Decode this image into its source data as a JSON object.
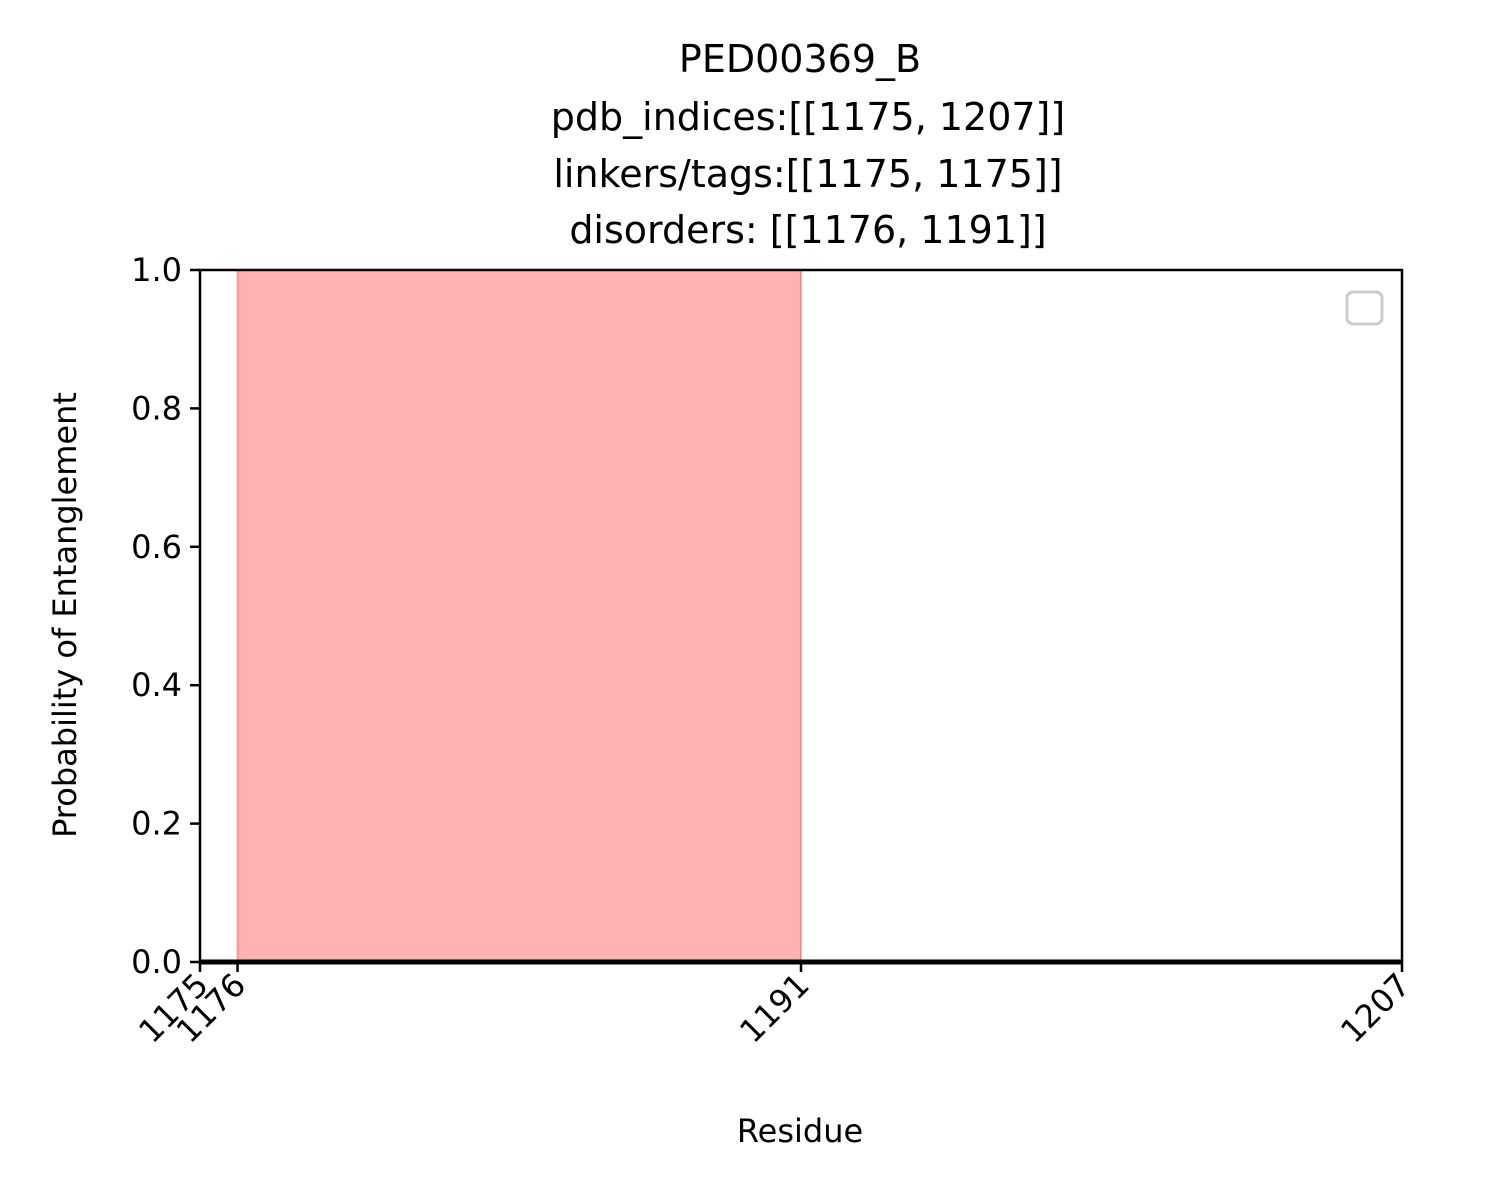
{
  "chart_data": {
    "type": "line",
    "title_lines": [
      "PED00369_B",
      "pdb_indices:[[1175, 1207]]",
      "linkers/tags:[[1175, 1175]]",
      "disorders: [[1176, 1191]]"
    ],
    "xlabel": "Residue",
    "ylabel": "Probability of Entanglement",
    "xlim": [
      1175,
      1207
    ],
    "ylim": [
      0,
      1.0
    ],
    "x_ticks": [
      1175,
      1176,
      1191,
      1207
    ],
    "x_tick_labels": [
      "1175",
      "1176",
      "1191",
      "1207"
    ],
    "y_ticks": [
      0.0,
      0.2,
      0.4,
      0.6,
      0.8,
      1.0
    ],
    "y_tick_labels": [
      "0.0",
      "0.2",
      "0.4",
      "0.6",
      "0.8",
      "1.0"
    ],
    "series": [
      {
        "x": [
          1175,
          1207
        ],
        "y": [
          0,
          0
        ],
        "color": "#000000"
      }
    ],
    "shaded_regions": [
      {
        "x_start": 1176,
        "x_end": 1191,
        "color": "#ff0000",
        "opacity": 0.3
      }
    ],
    "legend": {
      "placement": "upper right",
      "entries": []
    },
    "grid": false
  }
}
